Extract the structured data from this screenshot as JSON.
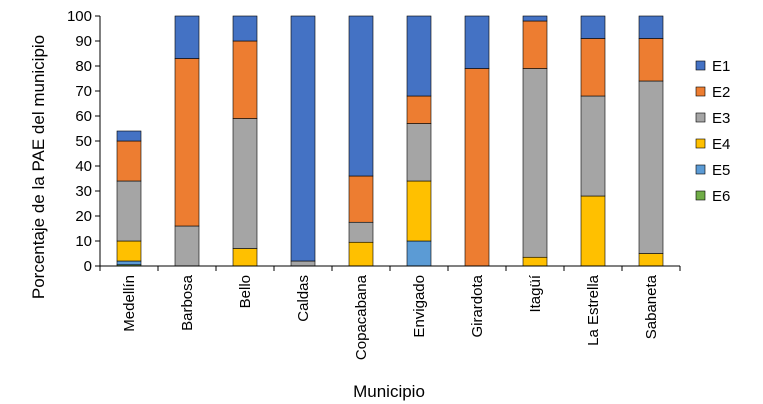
{
  "chart_data": {
    "type": "bar",
    "stacked": true,
    "xlabel": "Municipio",
    "ylabel": "Porcentaje de la PAE del municipio",
    "ylim": [
      0,
      100
    ],
    "yticks": [
      0,
      10,
      20,
      30,
      40,
      50,
      60,
      70,
      80,
      90,
      100
    ],
    "grid": false,
    "legend_position": "right",
    "categories": [
      "Medellín",
      "Barbosa",
      "Bello",
      "Caldas",
      "Copacabana",
      "Envigado",
      "Girardota",
      "Itagüí",
      "La Estrella",
      "Sabaneta"
    ],
    "series": [
      {
        "name": "E6",
        "color": "#70AD47",
        "values": [
          0.5,
          0,
          0,
          0,
          0,
          0,
          0,
          0,
          0,
          0
        ]
      },
      {
        "name": "E5",
        "color": "#5B9BD5",
        "values": [
          1.5,
          0,
          0,
          0,
          0,
          10,
          0,
          0,
          0,
          0
        ]
      },
      {
        "name": "E4",
        "color": "#FFC000",
        "values": [
          8,
          0,
          7,
          0,
          9.5,
          24,
          0,
          3.5,
          28,
          5
        ]
      },
      {
        "name": "E3",
        "color": "#A5A5A5",
        "values": [
          24,
          16,
          52,
          2,
          8,
          23,
          0,
          75.5,
          40,
          69
        ]
      },
      {
        "name": "E2",
        "color": "#ED7D31",
        "values": [
          16,
          67,
          31,
          0,
          18.5,
          11,
          79,
          19,
          23,
          17
        ]
      },
      {
        "name": "E1",
        "color": "#4472C4",
        "values": [
          4,
          17,
          10,
          98,
          64,
          32,
          21,
          2,
          9,
          9
        ]
      }
    ]
  }
}
